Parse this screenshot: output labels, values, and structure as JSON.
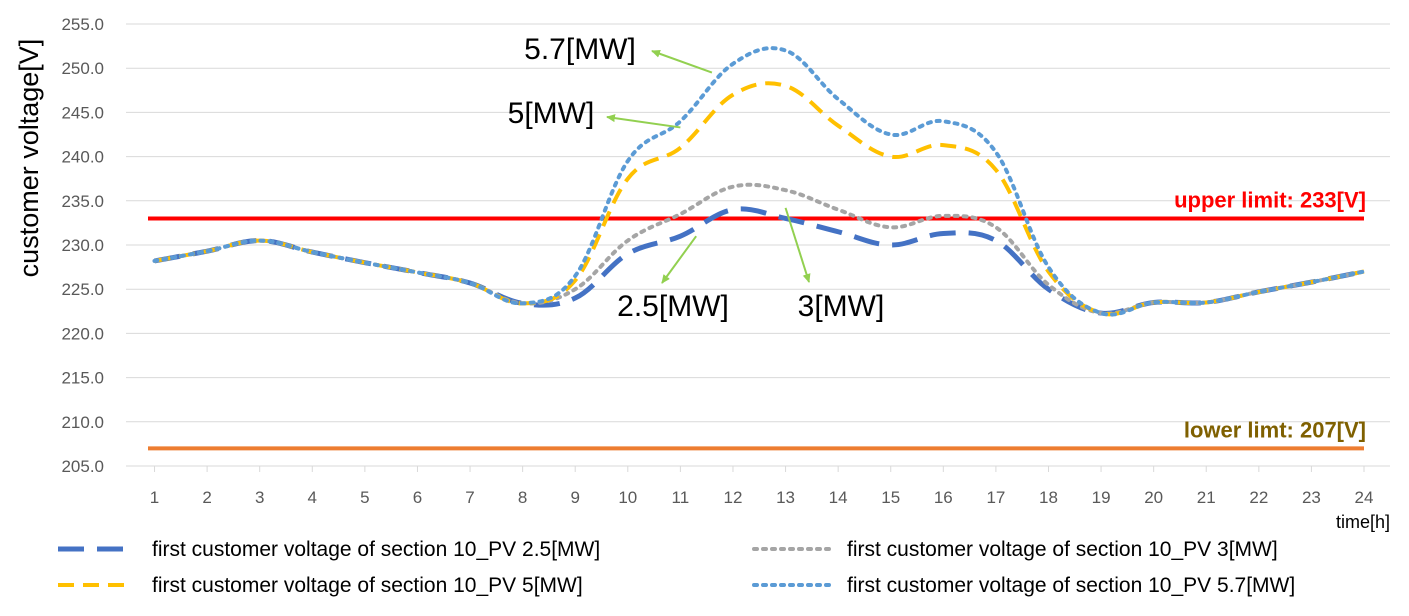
{
  "chart_data": {
    "type": "line",
    "title": "",
    "xlabel": "time[h]",
    "ylabel": "customer voltage[V]",
    "ylim": [
      205.0,
      255.0
    ],
    "yticks": [
      "205.0",
      "210.0",
      "215.0",
      "220.0",
      "225.0",
      "230.0",
      "235.0",
      "240.0",
      "245.0",
      "250.0",
      "255.0"
    ],
    "x": [
      1,
      2,
      3,
      4,
      5,
      6,
      7,
      8,
      9,
      10,
      11,
      12,
      13,
      14,
      15,
      16,
      17,
      18,
      19,
      20,
      21,
      22,
      23,
      24
    ],
    "grid": true,
    "legend_position": "bottom",
    "series": [
      {
        "name": "first customer voltage of section 10_PV 2.5[MW]",
        "color": "#4472C4",
        "dash": "long-dash",
        "values": [
          228.2,
          229.3,
          230.5,
          229.2,
          228.0,
          226.9,
          225.7,
          223.4,
          224.0,
          229.0,
          231.0,
          234.0,
          233.0,
          231.5,
          230.0,
          231.3,
          230.5,
          225.0,
          222.3,
          223.5,
          223.5,
          224.7,
          225.8,
          227.0
        ]
      },
      {
        "name": "first customer voltage of section 10_PV 3[MW]",
        "color": "#A5A5A5",
        "dash": "dot",
        "values": [
          228.2,
          229.3,
          230.5,
          229.2,
          228.0,
          226.9,
          225.7,
          223.4,
          225.0,
          230.5,
          233.5,
          236.6,
          236.2,
          234.0,
          232.0,
          233.3,
          232.0,
          225.5,
          222.3,
          223.5,
          223.5,
          224.7,
          225.8,
          227.0
        ]
      },
      {
        "name": "first customer voltage of section 10_PV 5[MW]",
        "color": "#FFC000",
        "dash": "dash",
        "values": [
          228.2,
          229.3,
          230.5,
          229.2,
          228.0,
          226.9,
          225.7,
          223.4,
          226.0,
          237.5,
          241.0,
          247.0,
          248.0,
          243.5,
          240.0,
          241.3,
          238.5,
          227.0,
          222.3,
          223.5,
          223.5,
          224.7,
          225.8,
          227.0
        ]
      },
      {
        "name": "first customer voltage of section 10_PV 5.7[MW]",
        "color": "#5B9BD5",
        "dash": "dot",
        "values": [
          228.2,
          229.3,
          230.5,
          229.2,
          228.0,
          226.9,
          225.7,
          223.4,
          226.5,
          239.5,
          244.0,
          250.5,
          252.0,
          246.5,
          242.5,
          244.0,
          240.5,
          227.5,
          222.3,
          223.5,
          223.5,
          224.7,
          225.8,
          227.0
        ]
      }
    ],
    "reference_lines": [
      {
        "label": "upper limit: 233[V]",
        "value": 233,
        "color": "#FF0000",
        "label_color": "#FF0000"
      },
      {
        "label": "lower limt: 207[V]",
        "value": 207,
        "color": "#ED7D31",
        "label_color": "#7F6000"
      }
    ],
    "annotations": [
      {
        "text": "5.7[MW]",
        "points_to": {
          "x": 11.6,
          "y": 249.5
        }
      },
      {
        "text": "5[MW]",
        "points_to": {
          "x": 11.0,
          "y": 243.3
        }
      },
      {
        "text": "2.5[MW]",
        "points_to": {
          "x": 11.3,
          "y": 231.0
        }
      },
      {
        "text": "3[MW]",
        "points_to": {
          "x": 13.0,
          "y": 234.2
        }
      }
    ],
    "annotation_arrow_color": "#92D050"
  }
}
